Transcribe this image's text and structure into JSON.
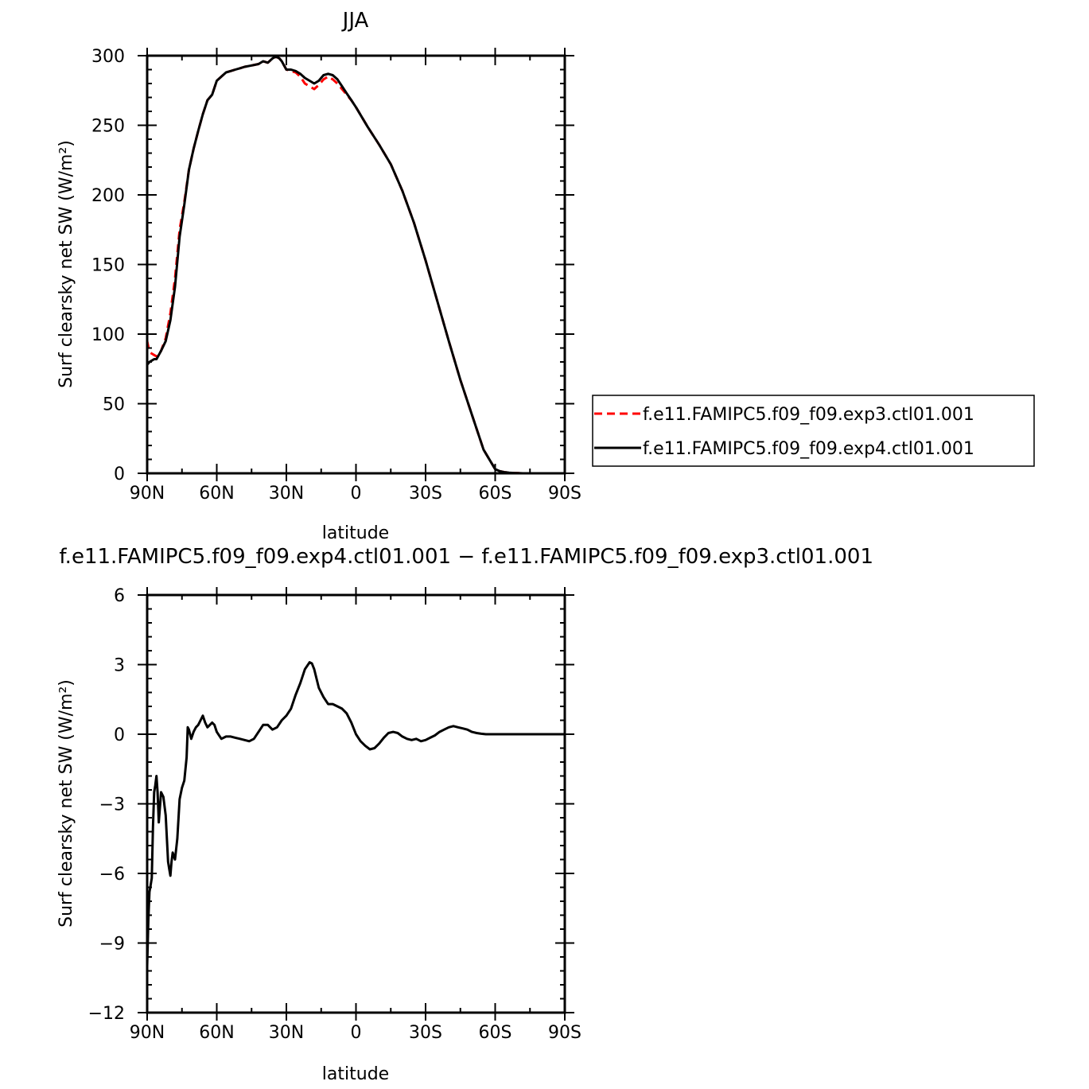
{
  "chart_data": [
    {
      "type": "line",
      "title": "JJA",
      "xlabel": "latitude",
      "ylabel": "Surf clearsky net SW (W/m²)",
      "xlim": [
        90,
        -90
      ],
      "ylim": [
        0,
        300
      ],
      "x_ticks": [
        90,
        60,
        30,
        0,
        -30,
        -60,
        -90
      ],
      "x_tick_labels": [
        "90N",
        "60N",
        "30N",
        "0",
        "30S",
        "60S",
        "90S"
      ],
      "y_ticks": [
        0,
        50,
        100,
        150,
        200,
        250,
        300
      ],
      "y_tick_labels": [
        "0",
        "50",
        "100",
        "150",
        "200",
        "250",
        "300"
      ],
      "legend_position": "right",
      "series": [
        {
          "name": "f.e11.FAMIPC5.f09_f09.exp3.ctl01.001",
          "color": "#ff0000",
          "dash": "dashed",
          "x": [
            90,
            89,
            88,
            87,
            86,
            85,
            84,
            82,
            80,
            78,
            76,
            74,
            72,
            70,
            68,
            66,
            64,
            62,
            60,
            58,
            56,
            54,
            52,
            50,
            48,
            45,
            42,
            40,
            38,
            36,
            35,
            34,
            33,
            32,
            30,
            28,
            26,
            24,
            22,
            20,
            18,
            16,
            14,
            12,
            10,
            8,
            6,
            4,
            2,
            0,
            -5,
            -10,
            -15,
            -20,
            -25,
            -30,
            -35,
            -40,
            -45,
            -50,
            -55,
            -60,
            -62,
            -64,
            -66,
            -68,
            -70,
            -72,
            -75,
            -80,
            -90
          ],
          "y": [
            95,
            87,
            86,
            85,
            84,
            85,
            88,
            97,
            115,
            140,
            175,
            195,
            218,
            233,
            246,
            258,
            268,
            272,
            282,
            285,
            288,
            289,
            290,
            291,
            292,
            293,
            294,
            296,
            295,
            298,
            299,
            299,
            298,
            296,
            290,
            289,
            288,
            285,
            280,
            278,
            276,
            279,
            283,
            285,
            283,
            280,
            276,
            272,
            268,
            263,
            249,
            236,
            222,
            203,
            180,
            153,
            124,
            95,
            67,
            42,
            17,
            3,
            1.5,
            0.8,
            0.4,
            0.2,
            0.1,
            0,
            0,
            0,
            0
          ]
        },
        {
          "name": "f.e11.FAMIPC5.f09_f09.exp4.ctl01.001",
          "color": "#000000",
          "dash": "solid",
          "x": [
            90,
            89,
            88,
            87,
            86,
            85,
            84,
            82,
            80,
            78,
            76,
            74,
            72,
            70,
            68,
            66,
            64,
            62,
            60,
            58,
            56,
            54,
            52,
            50,
            48,
            45,
            42,
            40,
            38,
            36,
            35,
            34,
            33,
            32,
            30,
            28,
            26,
            24,
            22,
            20,
            18,
            16,
            14,
            12,
            10,
            8,
            6,
            4,
            2,
            0,
            -5,
            -10,
            -15,
            -20,
            -25,
            -30,
            -35,
            -40,
            -45,
            -50,
            -55,
            -60,
            -62,
            -64,
            -66,
            -68,
            -70,
            -72,
            -75,
            -80,
            -90
          ],
          "y": [
            78,
            80,
            81,
            82,
            82,
            85,
            88,
            95,
            110,
            134,
            170,
            193,
            218,
            233,
            246,
            258,
            268,
            272,
            282,
            285,
            288,
            289,
            290,
            291,
            292,
            293,
            294,
            296,
            295,
            298,
            299,
            299,
            298,
            296,
            290,
            290,
            289,
            287,
            284,
            282,
            280,
            282,
            286,
            287,
            286,
            283,
            278,
            273,
            268,
            263,
            249,
            236,
            222,
            203,
            180,
            153,
            124,
            95,
            67,
            42,
            17,
            3,
            1.5,
            0.8,
            0.4,
            0.2,
            0.1,
            0,
            0,
            0,
            0
          ]
        }
      ]
    },
    {
      "type": "line",
      "title": "f.e11.FAMIPC5.f09_f09.exp4.ctl01.001 − f.e11.FAMIPC5.f09_f09.exp3.ctl01.001",
      "xlabel": "latitude",
      "ylabel": "Surf clearsky net SW (W/m²)",
      "xlim": [
        90,
        -90
      ],
      "ylim": [
        -12,
        6
      ],
      "x_ticks": [
        90,
        60,
        30,
        0,
        -30,
        -60,
        -90
      ],
      "x_tick_labels": [
        "90N",
        "60N",
        "30N",
        "0",
        "30S",
        "60S",
        "90S"
      ],
      "y_ticks": [
        -12,
        -9,
        -6,
        -3,
        0,
        3,
        6
      ],
      "y_tick_labels": [
        "−12",
        "−9",
        "−6",
        "−3",
        "0",
        "3",
        "6"
      ],
      "series": [
        {
          "color": "#000000",
          "dash": "solid",
          "x": [
            90,
            89.5,
            89,
            88.5,
            88,
            87.5,
            87,
            86.5,
            86,
            85.5,
            85,
            84,
            83,
            82,
            81,
            80.5,
            80,
            79.5,
            79,
            78,
            77,
            76,
            75,
            74,
            73,
            72.5,
            72,
            71,
            70,
            69,
            68,
            67,
            66,
            65,
            64,
            63,
            62,
            61,
            60,
            58,
            56,
            54,
            52,
            50,
            48,
            46,
            44,
            42,
            40,
            38,
            36,
            34,
            32,
            30,
            28,
            26,
            24,
            22,
            20,
            19,
            18,
            16,
            14,
            12,
            10,
            8,
            6,
            4,
            2,
            0,
            -2,
            -4,
            -6,
            -8,
            -10,
            -12,
            -14,
            -16,
            -18,
            -20,
            -22,
            -24,
            -26,
            -28,
            -30,
            -32,
            -34,
            -36,
            -38,
            -40,
            -42,
            -44,
            -46,
            -48,
            -50,
            -52,
            -54,
            -56,
            -58,
            -60,
            -62,
            -64,
            -66,
            -68,
            -70,
            -75,
            -80,
            -90
          ],
          "y": [
            -10,
            -8,
            -6.8,
            -6.5,
            -6.2,
            -4,
            -2.5,
            -2.2,
            -1.8,
            -2.5,
            -3.8,
            -2.5,
            -2.7,
            -3.5,
            -5.5,
            -5.8,
            -6.1,
            -5.5,
            -5.1,
            -5.4,
            -4.5,
            -2.8,
            -2.3,
            -2,
            -1,
            0.3,
            0.2,
            -0.2,
            0.1,
            0.3,
            0.4,
            0.6,
            0.8,
            0.5,
            0.3,
            0.4,
            0.5,
            0.4,
            0.1,
            -0.2,
            -0.1,
            -0.1,
            -0.15,
            -0.2,
            -0.25,
            -0.3,
            -0.2,
            0.1,
            0.4,
            0.4,
            0.2,
            0.3,
            0.6,
            0.8,
            1.1,
            1.7,
            2.2,
            2.8,
            3.1,
            3.05,
            2.8,
            2.0,
            1.6,
            1.3,
            1.3,
            1.2,
            1.1,
            0.9,
            0.5,
            0.0,
            -0.3,
            -0.5,
            -0.65,
            -0.6,
            -0.4,
            -0.15,
            0.05,
            0.1,
            0.05,
            -0.1,
            -0.2,
            -0.25,
            -0.2,
            -0.3,
            -0.25,
            -0.15,
            -0.05,
            0.1,
            0.2,
            0.3,
            0.35,
            0.3,
            0.25,
            0.2,
            0.1,
            0.05,
            0.02,
            0.0,
            0.0,
            0.0,
            0.0,
            0.0,
            0.0,
            0.0,
            0.0,
            0.0,
            0.0,
            0.0
          ]
        }
      ]
    }
  ]
}
